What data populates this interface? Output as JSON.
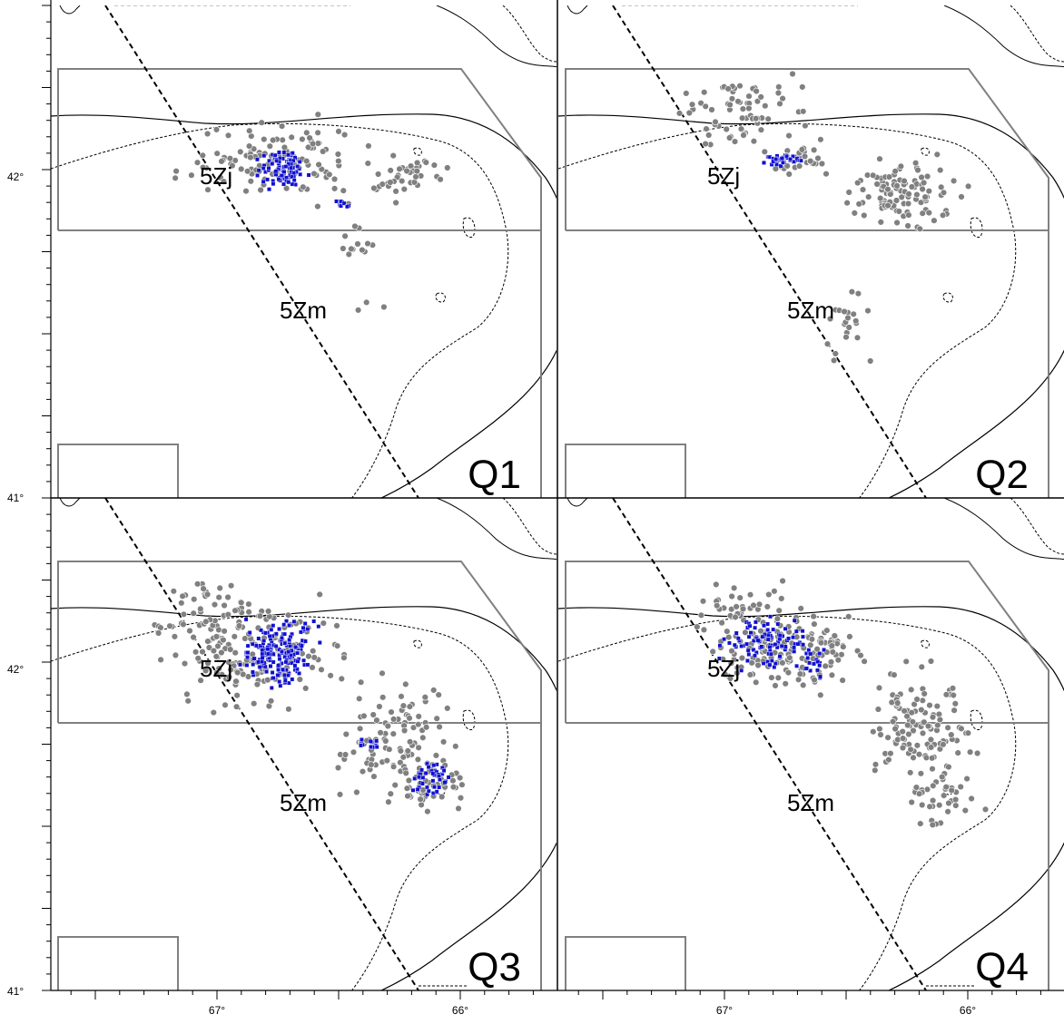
{
  "figure": {
    "y_tick_labels": {
      "lat_42": "42°",
      "lat_41": "41°"
    },
    "x_tick_labels": {
      "lon_67": "67°",
      "lon_66": "66°"
    },
    "area_labels": {
      "north": "5Zj",
      "south": "5Zm"
    },
    "colors": {
      "gray_dots": "#808080",
      "blue_dots": "#1010d0",
      "boxes": "#808080",
      "lines": "#000000"
    }
  },
  "panels": [
    {
      "id": "q1",
      "label": "Q1"
    },
    {
      "id": "q2",
      "label": "Q2"
    },
    {
      "id": "q3",
      "label": "Q3"
    },
    {
      "id": "q4",
      "label": "Q4"
    }
  ]
}
